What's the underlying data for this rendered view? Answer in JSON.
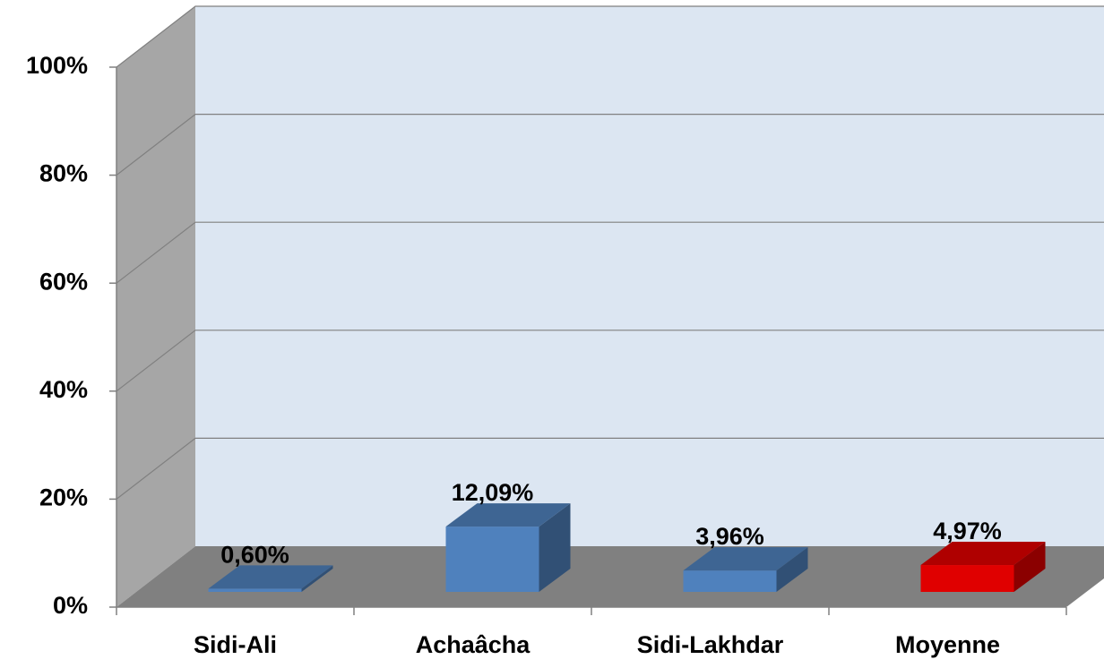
{
  "chart_data": {
    "type": "bar3d",
    "categories": [
      "Sidi-Ali",
      "Achaâcha",
      "Sidi-Lakhdar",
      "Moyenne"
    ],
    "values": [
      0.6,
      12.09,
      3.96,
      4.97
    ],
    "value_labels": [
      "0,60%",
      "12,09%",
      "3,96%",
      "4,97%"
    ],
    "colors": [
      "#4f81bd",
      "#4f81bd",
      "#4f81bd",
      "#e00000"
    ],
    "ylim": [
      0,
      100
    ],
    "yticks": [
      {
        "value": 0,
        "label": "0%"
      },
      {
        "value": 20,
        "label": "20%"
      },
      {
        "value": 40,
        "label": "40%"
      },
      {
        "value": 60,
        "label": "60%"
      },
      {
        "value": 80,
        "label": "80%"
      },
      {
        "value": 100,
        "label": "100%"
      }
    ],
    "grid": true
  }
}
